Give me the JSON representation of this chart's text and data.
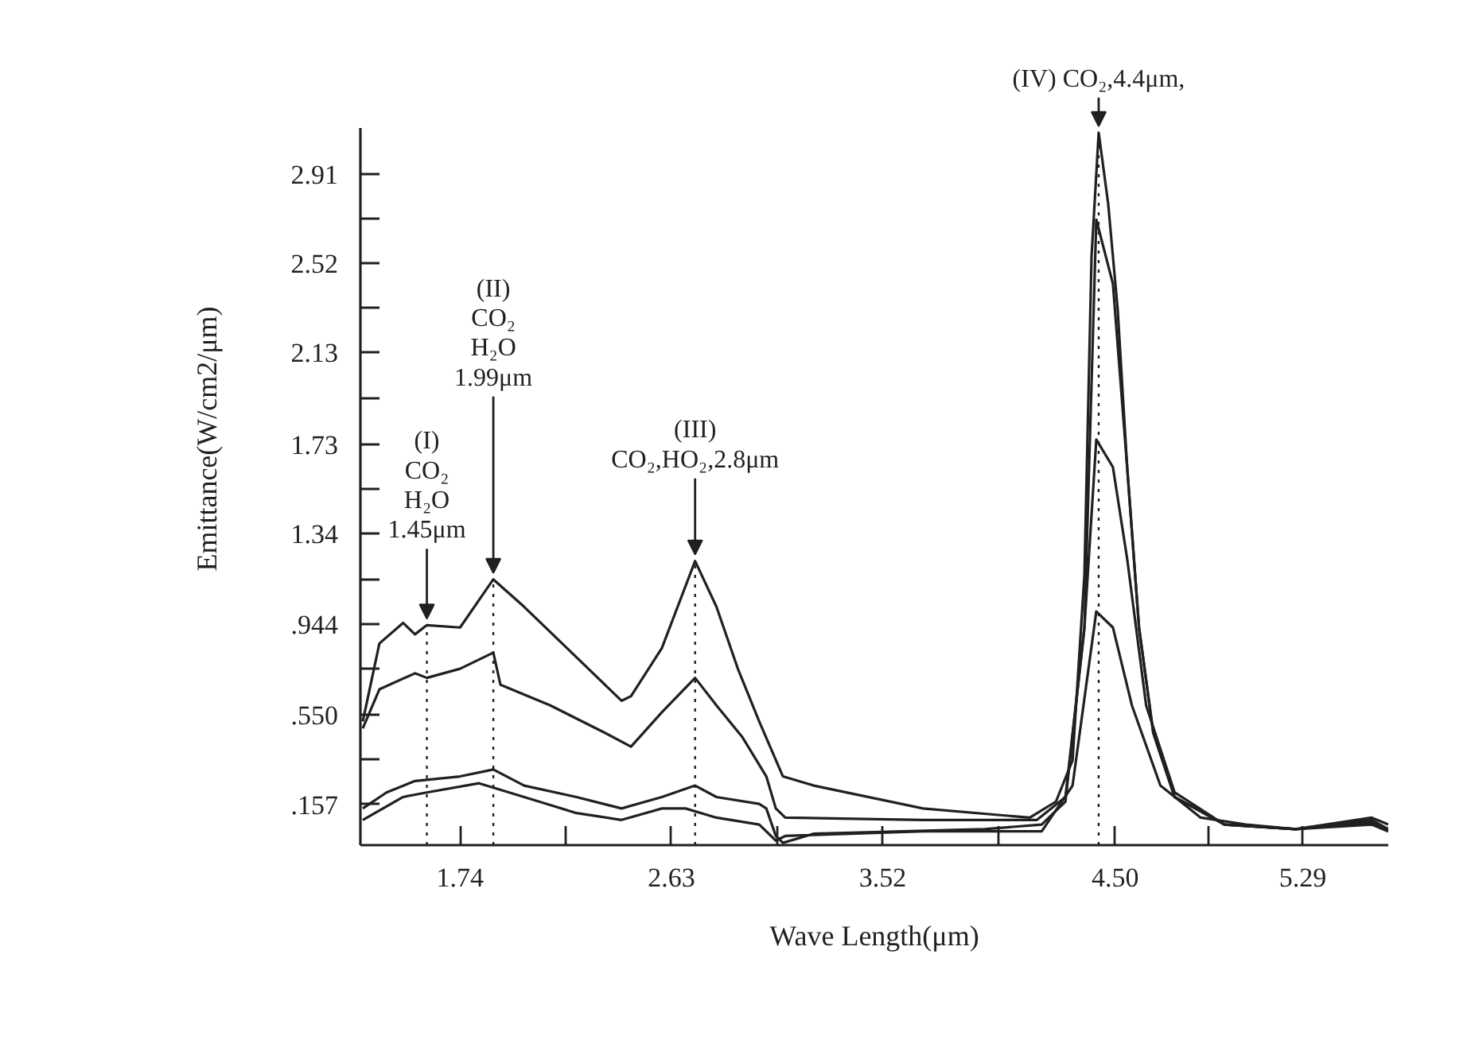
{
  "chart_data": {
    "type": "line",
    "xlabel": "Wave Length(μm)",
    "ylabel": "Emittance(W/cm2/μm)",
    "xlim": [
      1.32,
      5.65
    ],
    "ylim": [
      -0.02,
      3.11
    ],
    "xticks": [
      1.74,
      {
        "value": 2.185,
        "label": null
      },
      2.63,
      {
        "value": 3.075,
        "label": null
      },
      3.52,
      {
        "value": 4.01,
        "label": null
      },
      "4.50",
      {
        "value": 4.895,
        "label": null
      },
      5.29
    ],
    "yticks": [
      {
        "value": 0.157,
        "label": ".157"
      },
      {
        "value": 0.3535,
        "label": null
      },
      {
        "value": 0.55,
        "label": ".550"
      },
      {
        "value": 0.747,
        "label": null
      },
      {
        "value": 0.944,
        "label": ".944"
      },
      {
        "value": 1.142,
        "label": null
      },
      1.34,
      {
        "value": 1.535,
        "label": null
      },
      1.73,
      {
        "value": 1.93,
        "label": null
      },
      2.13,
      {
        "value": 2.325,
        "label": null
      },
      2.52,
      {
        "value": 2.715,
        "label": null
      },
      2.91
    ],
    "grid": false,
    "line_style": "solid",
    "series": [
      {
        "color": "#231f20",
        "x": [
          1.33,
          1.4,
          1.5,
          1.55,
          1.6,
          1.74,
          1.88,
          2.01,
          2.23,
          2.42,
          2.46,
          2.59,
          2.73,
          2.82,
          2.91,
          3.0,
          3.1,
          3.23,
          3.69,
          4.14,
          4.25,
          4.32,
          4.37,
          4.4,
          4.43,
          4.47,
          4.51,
          4.55,
          4.6,
          4.66,
          4.75,
          4.96,
          5.26,
          5.58,
          5.65
        ],
        "values": [
          0.52,
          0.86,
          0.95,
          0.9,
          0.94,
          0.93,
          1.14,
          1.02,
          0.8,
          0.61,
          0.63,
          0.84,
          1.22,
          1.02,
          0.75,
          0.52,
          0.28,
          0.24,
          0.14,
          0.1,
          0.17,
          0.35,
          1.16,
          2.55,
          3.09,
          2.78,
          2.32,
          1.63,
          0.93,
          0.47,
          0.19,
          0.07,
          0.05,
          0.09,
          0.05
        ]
      },
      {
        "color": "#231f20",
        "x": [
          1.33,
          1.4,
          1.55,
          1.6,
          1.74,
          1.88,
          1.91,
          2.12,
          2.35,
          2.46,
          2.59,
          2.73,
          2.82,
          2.93,
          3.03,
          3.07,
          3.11,
          3.69,
          4.17,
          4.29,
          4.37,
          4.42,
          4.49,
          4.55,
          4.6,
          4.66,
          4.75,
          4.96,
          5.26,
          5.58,
          5.65
        ],
        "values": [
          0.49,
          0.66,
          0.73,
          0.71,
          0.75,
          0.82,
          0.68,
          0.59,
          0.47,
          0.41,
          0.56,
          0.71,
          0.59,
          0.45,
          0.28,
          0.14,
          0.1,
          0.09,
          0.09,
          0.19,
          0.93,
          2.71,
          2.43,
          1.63,
          0.93,
          0.47,
          0.19,
          0.07,
          0.05,
          0.1,
          0.07
        ]
      },
      {
        "color": "#231f20",
        "x": [
          1.33,
          1.43,
          1.55,
          1.74,
          1.88,
          2.01,
          2.23,
          2.42,
          2.59,
          2.73,
          2.82,
          3.0,
          3.03,
          3.07,
          3.1,
          3.23,
          3.95,
          4.19,
          4.29,
          4.37,
          4.42,
          4.49,
          4.55,
          4.63,
          4.75,
          4.96,
          5.26,
          5.58,
          5.65
        ],
        "values": [
          0.14,
          0.21,
          0.26,
          0.28,
          0.31,
          0.24,
          0.19,
          0.14,
          0.19,
          0.24,
          0.19,
          0.16,
          0.14,
          0.02,
          -0.01,
          0.03,
          0.05,
          0.07,
          0.17,
          0.93,
          1.75,
          1.63,
          1.23,
          0.59,
          0.21,
          0.07,
          0.05,
          0.08,
          0.05
        ]
      },
      {
        "color": "#231f20",
        "x": [
          1.33,
          1.5,
          1.6,
          1.82,
          2.01,
          2.23,
          2.42,
          2.59,
          2.69,
          2.82,
          3.0,
          3.07,
          3.11,
          3.69,
          4.19,
          4.32,
          4.42,
          4.49,
          4.57,
          4.69,
          4.86,
          5.05,
          5.26,
          5.58,
          5.65
        ],
        "values": [
          0.09,
          0.19,
          0.21,
          0.25,
          0.19,
          0.12,
          0.09,
          0.14,
          0.14,
          0.1,
          0.07,
          0.0,
          0.02,
          0.04,
          0.04,
          0.24,
          1.0,
          0.93,
          0.59,
          0.24,
          0.1,
          0.07,
          0.05,
          0.07,
          0.04
        ]
      }
    ],
    "ref_lines": [
      {
        "axis": "x",
        "value": 1.6,
        "line_style": "dotted",
        "color": "#231f20"
      },
      {
        "axis": "x",
        "value": 1.88,
        "line_style": "dotted",
        "color": "#231f20"
      },
      {
        "axis": "x",
        "value": 2.73,
        "line_style": "dotted",
        "color": "#231f20"
      },
      {
        "axis": "x",
        "value": 4.43,
        "line_style": "dotted",
        "color": "#231f20"
      }
    ],
    "annotations": [
      {
        "text": "(I)\nCO₂\nH₂O\n1.45μm",
        "x": 1.6,
        "y": 0.94
      },
      {
        "text": "(II)\nCO₂\nH₂O\n1.99μm",
        "x": 1.88,
        "y": 1.14
      },
      {
        "text": "(III)\nCO₂,HO₂,2.8μm",
        "x": 2.73,
        "y": 1.22
      },
      {
        "text": "(IV) CO₂,4.4μm,",
        "x": 4.43,
        "y": 3.09
      }
    ]
  }
}
